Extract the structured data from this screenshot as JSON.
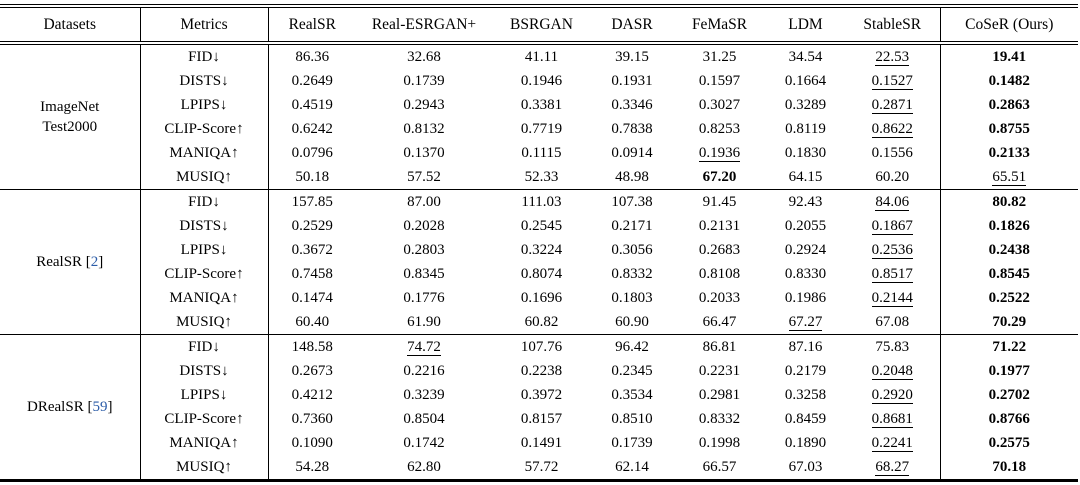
{
  "colors": {
    "text": "#000000",
    "citation_blue": "#2b5ca8"
  },
  "table": {
    "headers": [
      "Datasets",
      "Metrics",
      "RealSR",
      "Real-ESRGAN+",
      "BSRGAN",
      "DASR",
      "FeMaSR",
      "LDM",
      "StableSR",
      "CoSeR (Ours)"
    ],
    "groups": [
      {
        "dataset": {
          "lines": [
            "ImageNet",
            "Test2000"
          ],
          "cite": null
        },
        "rows": [
          {
            "metric": "FID",
            "arrow": "↓",
            "values": [
              "86.36",
              "32.68",
              "41.11",
              "39.15",
              "31.25",
              "34.54",
              "22.53",
              "19.41"
            ],
            "bold": [
              7
            ],
            "underline": [
              6
            ]
          },
          {
            "metric": "DISTS",
            "arrow": "↓",
            "values": [
              "0.2649",
              "0.1739",
              "0.1946",
              "0.1931",
              "0.1597",
              "0.1664",
              "0.1527",
              "0.1482"
            ],
            "bold": [
              7
            ],
            "underline": [
              6
            ]
          },
          {
            "metric": "LPIPS",
            "arrow": "↓",
            "values": [
              "0.4519",
              "0.2943",
              "0.3381",
              "0.3346",
              "0.3027",
              "0.3289",
              "0.2871",
              "0.2863"
            ],
            "bold": [
              7
            ],
            "underline": [
              6
            ]
          },
          {
            "metric": "CLIP-Score",
            "arrow": "↑",
            "values": [
              "0.6242",
              "0.8132",
              "0.7719",
              "0.7838",
              "0.8253",
              "0.8119",
              "0.8622",
              "0.8755"
            ],
            "bold": [
              7
            ],
            "underline": [
              6
            ]
          },
          {
            "metric": "MANIQA",
            "arrow": "↑",
            "values": [
              "0.0796",
              "0.1370",
              "0.1115",
              "0.0914",
              "0.1936",
              "0.1830",
              "0.1556",
              "0.2133"
            ],
            "bold": [
              7
            ],
            "underline": [
              4
            ]
          },
          {
            "metric": "MUSIQ",
            "arrow": "↑",
            "values": [
              "50.18",
              "57.52",
              "52.33",
              "48.98",
              "67.20",
              "64.15",
              "60.20",
              "65.51"
            ],
            "bold": [
              4
            ],
            "underline": [
              7
            ]
          }
        ]
      },
      {
        "dataset": {
          "lines": [
            "RealSR"
          ],
          "cite": "2"
        },
        "rows": [
          {
            "metric": "FID",
            "arrow": "↓",
            "values": [
              "157.85",
              "87.00",
              "111.03",
              "107.38",
              "91.45",
              "92.43",
              "84.06",
              "80.82"
            ],
            "bold": [
              7
            ],
            "underline": [
              6
            ]
          },
          {
            "metric": "DISTS",
            "arrow": "↓",
            "values": [
              "0.2529",
              "0.2028",
              "0.2545",
              "0.2171",
              "0.2131",
              "0.2055",
              "0.1867",
              "0.1826"
            ],
            "bold": [
              7
            ],
            "underline": [
              6
            ]
          },
          {
            "metric": "LPIPS",
            "arrow": "↓",
            "values": [
              "0.3672",
              "0.2803",
              "0.3224",
              "0.3056",
              "0.2683",
              "0.2924",
              "0.2536",
              "0.2438"
            ],
            "bold": [
              7
            ],
            "underline": [
              6
            ]
          },
          {
            "metric": "CLIP-Score",
            "arrow": "↑",
            "values": [
              "0.7458",
              "0.8345",
              "0.8074",
              "0.8332",
              "0.8108",
              "0.8330",
              "0.8517",
              "0.8545"
            ],
            "bold": [
              7
            ],
            "underline": [
              6
            ]
          },
          {
            "metric": "MANIQA",
            "arrow": "↑",
            "values": [
              "0.1474",
              "0.1776",
              "0.1696",
              "0.1803",
              "0.2033",
              "0.1986",
              "0.2144",
              "0.2522"
            ],
            "bold": [
              7
            ],
            "underline": [
              6
            ]
          },
          {
            "metric": "MUSIQ",
            "arrow": "↑",
            "values": [
              "60.40",
              "61.90",
              "60.82",
              "60.90",
              "66.47",
              "67.27",
              "67.08",
              "70.29"
            ],
            "bold": [
              7
            ],
            "underline": [
              5
            ]
          }
        ]
      },
      {
        "dataset": {
          "lines": [
            "DRealSR"
          ],
          "cite": "59"
        },
        "rows": [
          {
            "metric": "FID",
            "arrow": "↓",
            "values": [
              "148.58",
              "74.72",
              "107.76",
              "96.42",
              "86.81",
              "87.16",
              "75.83",
              "71.22"
            ],
            "bold": [
              7
            ],
            "underline": [
              1
            ]
          },
          {
            "metric": "DISTS",
            "arrow": "↓",
            "values": [
              "0.2673",
              "0.2216",
              "0.2238",
              "0.2345",
              "0.2231",
              "0.2179",
              "0.2048",
              "0.1977"
            ],
            "bold": [
              7
            ],
            "underline": [
              6
            ]
          },
          {
            "metric": "LPIPS",
            "arrow": "↓",
            "values": [
              "0.4212",
              "0.3239",
              "0.3972",
              "0.3534",
              "0.2981",
              "0.3258",
              "0.2920",
              "0.2702"
            ],
            "bold": [
              7
            ],
            "underline": [
              6
            ]
          },
          {
            "metric": "CLIP-Score",
            "arrow": "↑",
            "values": [
              "0.7360",
              "0.8504",
              "0.8157",
              "0.8510",
              "0.8332",
              "0.8459",
              "0.8681",
              "0.8766"
            ],
            "bold": [
              7
            ],
            "underline": [
              6
            ]
          },
          {
            "metric": "MANIQA",
            "arrow": "↑",
            "values": [
              "0.1090",
              "0.1742",
              "0.1491",
              "0.1739",
              "0.1998",
              "0.1890",
              "0.2241",
              "0.2575"
            ],
            "bold": [
              7
            ],
            "underline": [
              6
            ]
          },
          {
            "metric": "MUSIQ",
            "arrow": "↑",
            "values": [
              "54.28",
              "62.80",
              "57.72",
              "62.14",
              "66.57",
              "67.03",
              "68.27",
              "70.18"
            ],
            "bold": [
              7
            ],
            "underline": [
              6
            ]
          }
        ]
      }
    ]
  }
}
